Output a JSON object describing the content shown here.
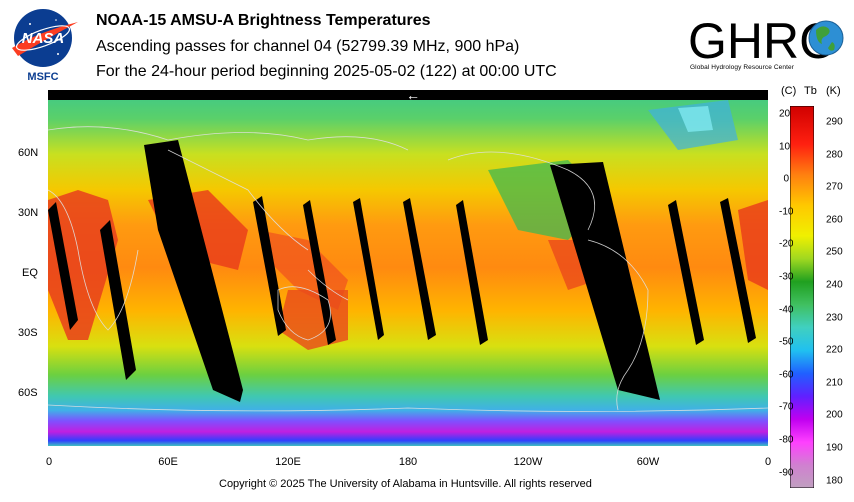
{
  "header": {
    "title": "NOAA-15 AMSU-A Brightness Temperatures",
    "line2": "Ascending passes for channel 04 (52799.39 MHz, 900 hPa)",
    "line3": "For the 24-hour period beginning 2025-05-02 (122) at 00:00 UTC"
  },
  "logos": {
    "left_text": "NASA",
    "left_sub": "MSFC",
    "right_text": "GHRC",
    "right_sub": "Global Hydrology Resource Center"
  },
  "map": {
    "y_labels": [
      "60N",
      "30N",
      "EQ",
      "30S",
      "60S"
    ],
    "x_labels": [
      "0",
      "60E",
      "120E",
      "180",
      "120W",
      "60W",
      "0"
    ],
    "orbit_arrow": "←"
  },
  "colorbar": {
    "header_c": "(C)",
    "header_tb": "Tb",
    "header_k": "(K)",
    "celsius": [
      "20",
      "10",
      "0",
      "-10",
      "-20",
      "-30",
      "-40",
      "-50",
      "-60",
      "-70",
      "-80",
      "-90"
    ],
    "kelvin": [
      "290",
      "280",
      "270",
      "260",
      "250",
      "240",
      "230",
      "220",
      "210",
      "200",
      "190",
      "180"
    ]
  },
  "footer": {
    "copyright": "Copyright © 2025 The University of Alabama in Huntsville.  All rights reserved"
  },
  "colors": {
    "warm": "#e83a1a",
    "cold": "#b000c8",
    "swath_gap": "#000000"
  }
}
